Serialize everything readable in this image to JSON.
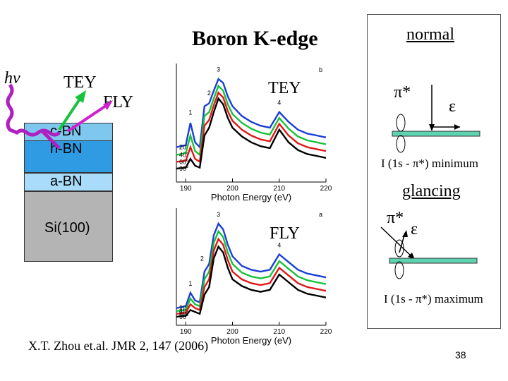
{
  "slide": {
    "title": "Boron K-edge",
    "page_number": "38",
    "citation": "X.T. Zhou et.al. JMR 2, 147 (2006)"
  },
  "left": {
    "hv": "hv",
    "tey": "TEY",
    "fly": "FLY",
    "layers": [
      "c-BN",
      "h-BN",
      "a-BN",
      "Si(100)"
    ]
  },
  "panels": {
    "tey_label": "TEY",
    "fly_label": "FLY",
    "top_letter": "b",
    "bottom_letter": "a",
    "xlabel": "Photon Energy (eV)",
    "xticks": [
      "190",
      "200",
      "210",
      "220"
    ],
    "top_peaks": [
      "1",
      "2",
      "3",
      "4"
    ],
    "bottom_peaks": [
      "1",
      "2",
      "3",
      "4"
    ],
    "angles": [
      "20°",
      "40°",
      "60°",
      "90°"
    ]
  },
  "right": {
    "normal": "normal",
    "glancing": "glancing",
    "pi_star": "π*",
    "epsilon": "ε",
    "minimum": "I (1s - π*) minimum",
    "maximum": "I (1s - π*) maximum"
  },
  "colors": {
    "blue": "#1a3fd6",
    "green": "#18c23a",
    "red": "#e01818",
    "black": "#000000",
    "substrate_teal": "#5fd3b0"
  },
  "chart_data": [
    {
      "type": "line",
      "xlabel": "Photon Energy (eV)",
      "xlim": [
        188,
        220
      ],
      "series": [
        {
          "name": "20°",
          "x": [
            188,
            190,
            191,
            192,
            193,
            194,
            195,
            196,
            197,
            198,
            199,
            200,
            202,
            204,
            206,
            208,
            210,
            212,
            214,
            216,
            218,
            220
          ],
          "values": [
            0.3,
            0.32,
            0.55,
            0.35,
            0.3,
            0.72,
            0.75,
            0.88,
            1.0,
            0.96,
            0.82,
            0.72,
            0.62,
            0.56,
            0.52,
            0.5,
            0.66,
            0.56,
            0.48,
            0.44,
            0.42,
            0.4
          ]
        },
        {
          "name": "40°",
          "x": [
            188,
            190,
            191,
            192,
            193,
            194,
            195,
            196,
            197,
            198,
            199,
            200,
            202,
            204,
            206,
            208,
            210,
            212,
            214,
            216,
            218,
            220
          ],
          "values": [
            0.22,
            0.24,
            0.42,
            0.26,
            0.22,
            0.62,
            0.66,
            0.8,
            0.93,
            0.88,
            0.74,
            0.64,
            0.55,
            0.49,
            0.45,
            0.43,
            0.6,
            0.49,
            0.41,
            0.37,
            0.35,
            0.33
          ]
        },
        {
          "name": "60°",
          "x": [
            188,
            190,
            191,
            192,
            193,
            194,
            195,
            196,
            197,
            198,
            199,
            200,
            202,
            204,
            206,
            208,
            210,
            212,
            214,
            216,
            218,
            220
          ],
          "values": [
            0.15,
            0.16,
            0.3,
            0.18,
            0.15,
            0.52,
            0.58,
            0.73,
            0.86,
            0.81,
            0.67,
            0.57,
            0.48,
            0.42,
            0.38,
            0.36,
            0.54,
            0.42,
            0.34,
            0.3,
            0.28,
            0.26
          ]
        },
        {
          "name": "90°",
          "x": [
            188,
            190,
            191,
            192,
            193,
            194,
            195,
            196,
            197,
            198,
            199,
            200,
            202,
            204,
            206,
            208,
            210,
            212,
            214,
            216,
            218,
            220
          ],
          "values": [
            0.08,
            0.09,
            0.18,
            0.11,
            0.09,
            0.42,
            0.5,
            0.66,
            0.8,
            0.74,
            0.6,
            0.5,
            0.41,
            0.35,
            0.31,
            0.29,
            0.48,
            0.35,
            0.27,
            0.23,
            0.21,
            0.19
          ]
        }
      ]
    },
    {
      "type": "line",
      "xlabel": "Photon Energy (eV)",
      "xlim": [
        188,
        220
      ],
      "series": [
        {
          "name": "20°",
          "x": [
            188,
            190,
            191,
            192,
            193,
            194,
            195,
            196,
            197,
            198,
            199,
            200,
            202,
            204,
            206,
            208,
            210,
            212,
            214,
            216,
            218,
            220
          ],
          "values": [
            0.12,
            0.14,
            0.28,
            0.2,
            0.18,
            0.5,
            0.58,
            0.88,
            1.0,
            0.94,
            0.78,
            0.66,
            0.56,
            0.52,
            0.5,
            0.52,
            0.68,
            0.6,
            0.52,
            0.48,
            0.46,
            0.44
          ]
        },
        {
          "name": "40°",
          "x": [
            188,
            190,
            191,
            192,
            193,
            194,
            195,
            196,
            197,
            198,
            199,
            200,
            202,
            204,
            206,
            208,
            210,
            212,
            214,
            216,
            218,
            220
          ],
          "values": [
            0.09,
            0.1,
            0.22,
            0.16,
            0.14,
            0.42,
            0.5,
            0.8,
            0.92,
            0.86,
            0.7,
            0.58,
            0.49,
            0.45,
            0.43,
            0.45,
            0.61,
            0.53,
            0.45,
            0.41,
            0.39,
            0.37
          ]
        },
        {
          "name": "60°",
          "x": [
            188,
            190,
            191,
            192,
            193,
            194,
            195,
            196,
            197,
            198,
            199,
            200,
            202,
            204,
            206,
            208,
            210,
            212,
            214,
            216,
            218,
            220
          ],
          "values": [
            0.06,
            0.07,
            0.16,
            0.12,
            0.1,
            0.34,
            0.42,
            0.72,
            0.84,
            0.78,
            0.62,
            0.5,
            0.42,
            0.38,
            0.36,
            0.38,
            0.54,
            0.46,
            0.38,
            0.34,
            0.32,
            0.3
          ]
        },
        {
          "name": "90°",
          "x": [
            188,
            190,
            191,
            192,
            193,
            194,
            195,
            196,
            197,
            198,
            199,
            200,
            202,
            204,
            206,
            208,
            210,
            212,
            214,
            216,
            218,
            220
          ],
          "values": [
            0.03,
            0.04,
            0.1,
            0.08,
            0.06,
            0.26,
            0.34,
            0.64,
            0.76,
            0.7,
            0.54,
            0.42,
            0.35,
            0.31,
            0.29,
            0.31,
            0.47,
            0.39,
            0.31,
            0.27,
            0.25,
            0.23
          ]
        }
      ]
    }
  ]
}
